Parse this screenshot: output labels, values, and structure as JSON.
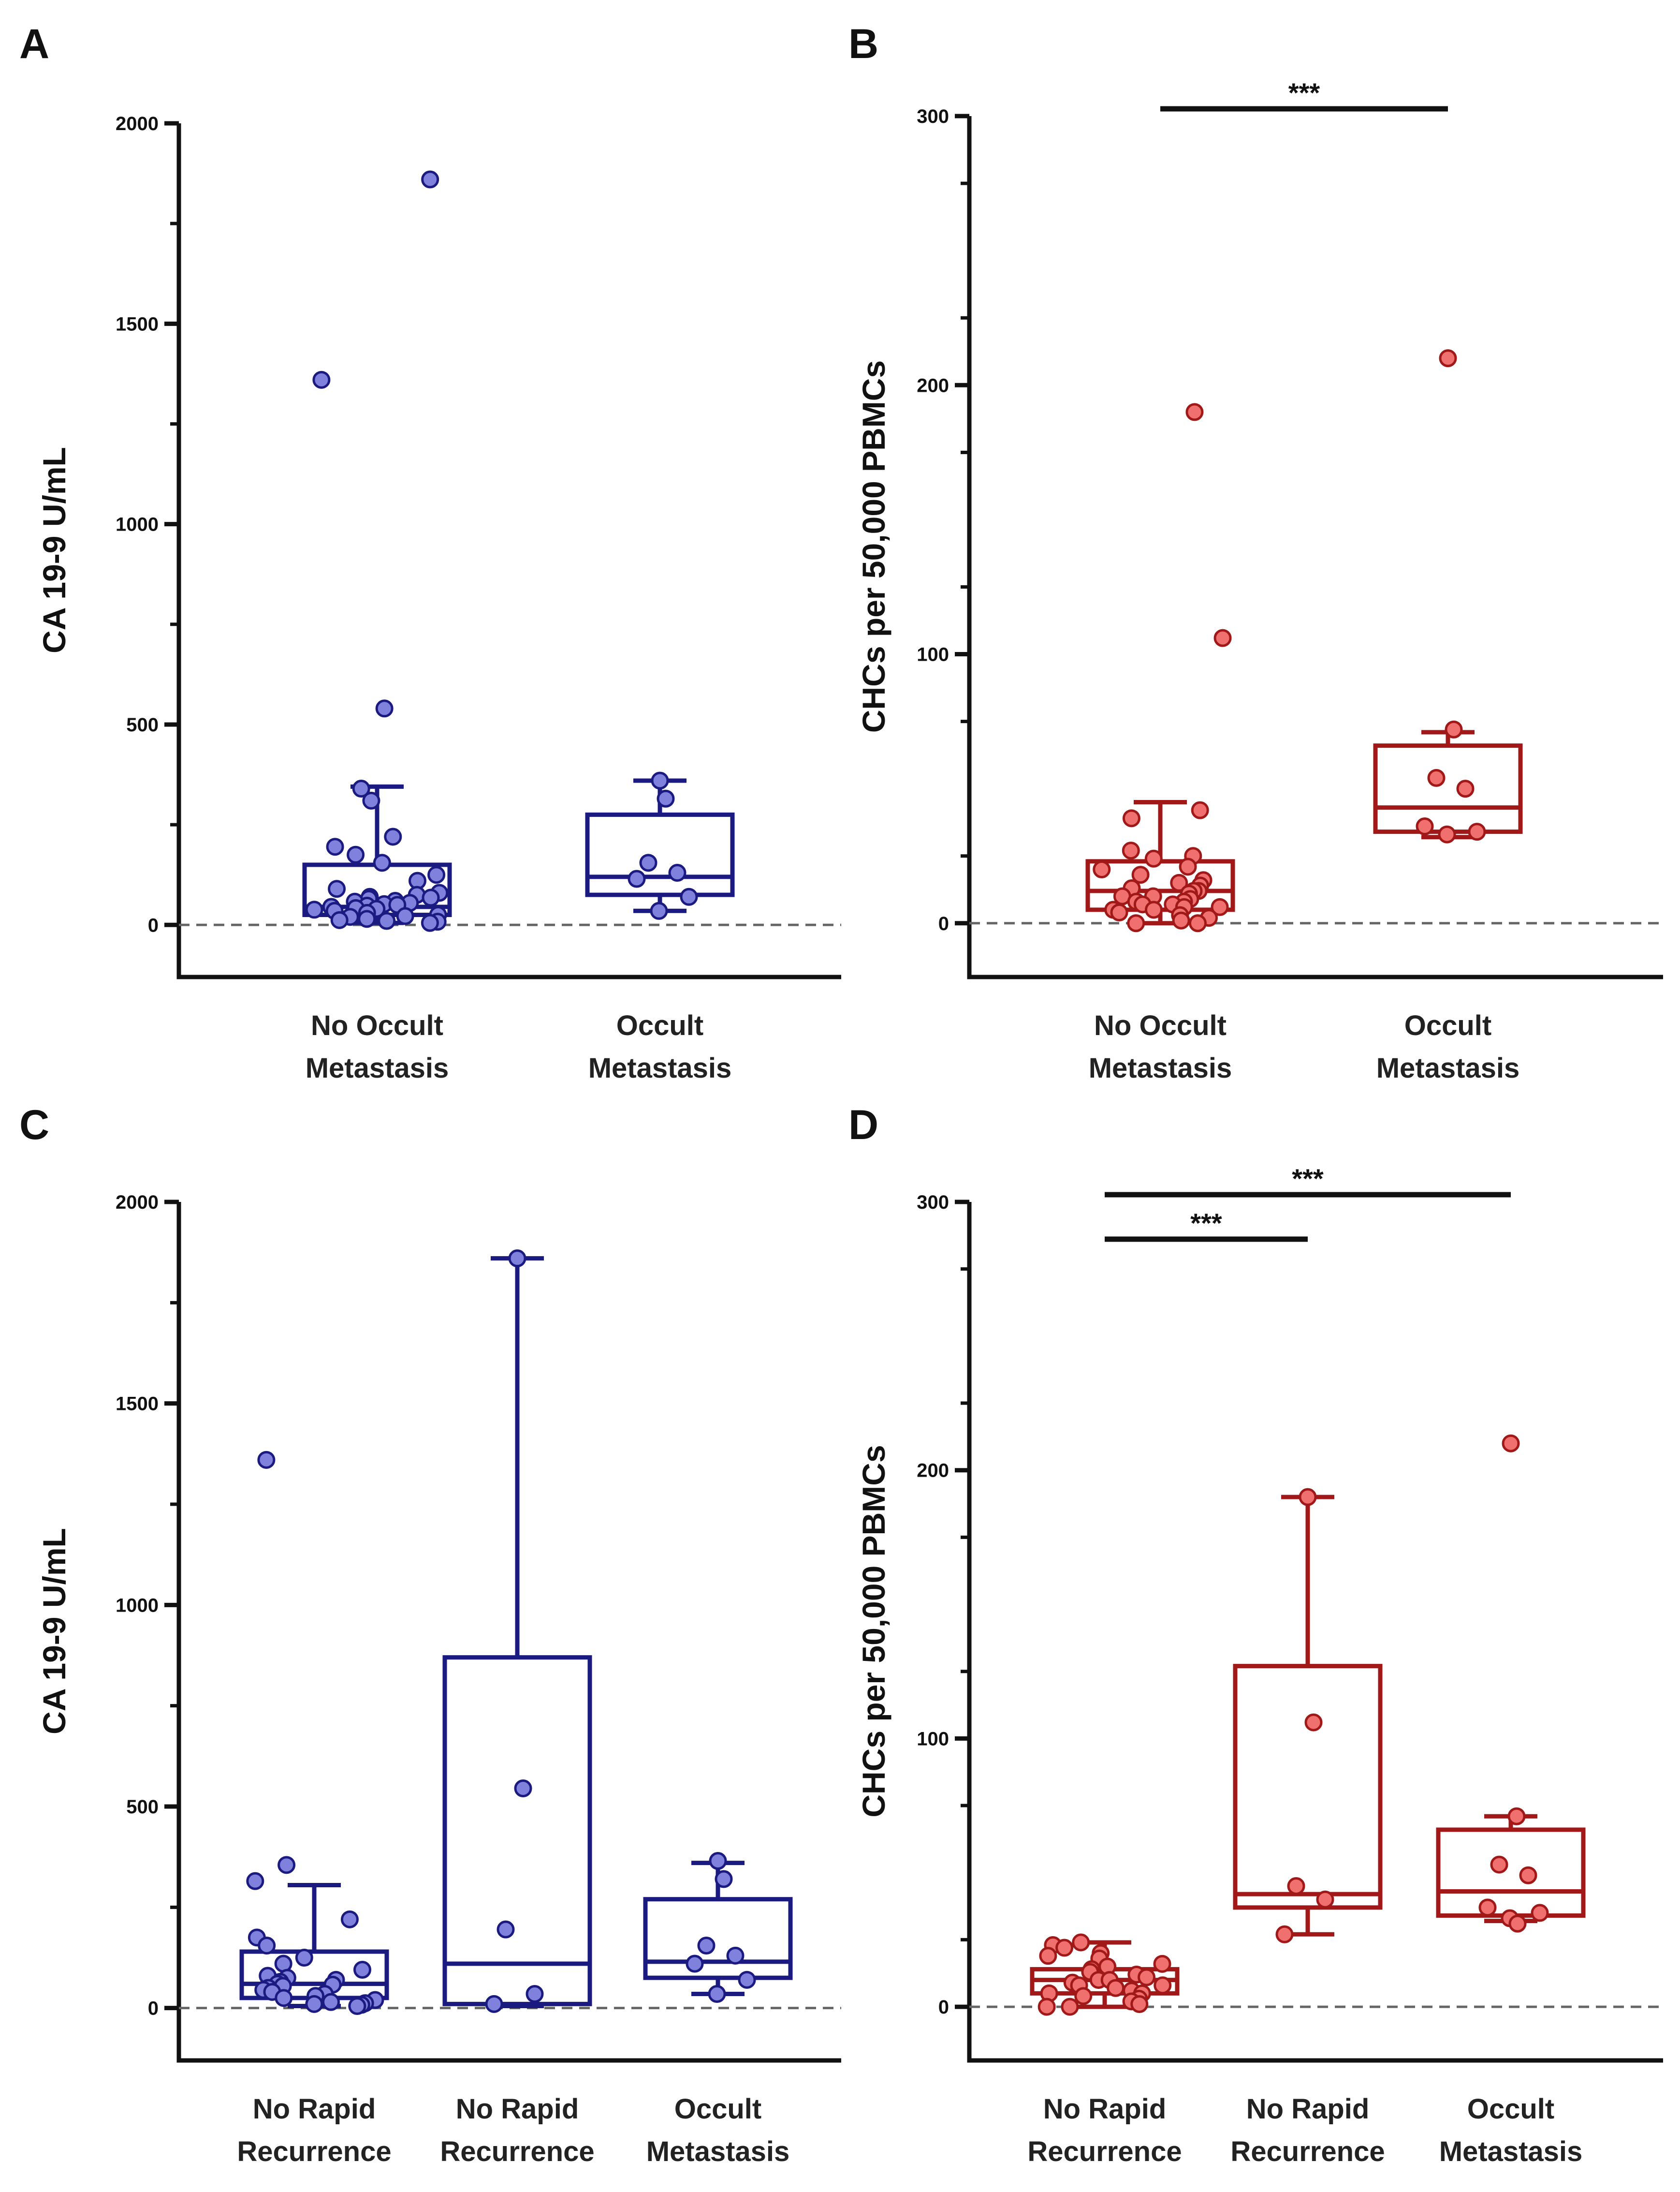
{
  "chart_data": [
    {
      "id": "A",
      "panel_label": "A",
      "type": "box-scatter",
      "ylabel": "CA 19-9 U/mL",
      "ylim": [
        -130,
        2000
      ],
      "yticks": [
        "0",
        "500",
        "1000",
        "1500",
        "2000"
      ],
      "ytick_values": [
        0,
        500,
        1000,
        1500,
        2000
      ],
      "ymin_tick": 250,
      "color": "#1a1a80",
      "fill": "#8080dd",
      "categories": [
        [
          "No Occult",
          "Metastasis"
        ],
        [
          "Occult",
          "Metastasis"
        ]
      ],
      "boxes": [
        {
          "q1": 25,
          "median": 45,
          "q3": 150,
          "low": 5,
          "high": 345
        },
        {
          "q1": 75,
          "median": 120,
          "q3": 275,
          "low": 35,
          "high": 360
        }
      ],
      "points": [
        [
          1860,
          1360,
          540,
          340,
          310,
          220,
          195,
          175,
          155,
          125,
          110,
          90,
          80,
          75,
          70,
          68,
          65,
          60,
          58,
          55,
          52,
          50,
          48,
          45,
          42,
          40,
          38,
          35,
          30,
          25,
          22,
          20,
          15,
          12,
          10,
          8,
          5
        ],
        [
          360,
          315,
          155,
          130,
          115,
          70,
          35
        ]
      ],
      "significance": []
    },
    {
      "id": "B",
      "panel_label": "B",
      "type": "box-scatter",
      "ylabel": "CHCs per 50,000 PBMCs",
      "ylim": [
        -20,
        300
      ],
      "yticks": [
        "0",
        "100",
        "200",
        "300"
      ],
      "ytick_values": [
        0,
        100,
        200,
        300
      ],
      "ymin_tick": 25,
      "color": "#a01818",
      "fill": "#f07070",
      "categories": [
        [
          "No Occult",
          "Metastasis"
        ],
        [
          "Occult",
          "Metastasis"
        ]
      ],
      "boxes": [
        {
          "q1": 5,
          "median": 12,
          "q3": 23,
          "low": 0,
          "high": 45
        },
        {
          "q1": 34,
          "median": 43,
          "q3": 66,
          "low": 32,
          "high": 71
        }
      ],
      "points": [
        [
          190,
          106,
          42,
          39,
          27,
          25,
          24,
          21,
          20,
          18,
          16,
          15,
          14,
          13,
          12,
          12,
          11,
          10,
          10,
          9,
          8,
          8,
          7,
          7,
          6,
          6,
          5,
          5,
          4,
          3,
          2,
          1,
          0,
          0
        ],
        [
          210,
          72,
          54,
          50,
          36,
          34,
          33
        ]
      ],
      "significance": [
        {
          "from": 0,
          "to": 1,
          "label": "***",
          "level": 0
        }
      ]
    },
    {
      "id": "C",
      "panel_label": "C",
      "type": "box-scatter",
      "ylabel": "CA 19-9 U/mL",
      "ylim": [
        -130,
        2000
      ],
      "yticks": [
        "0",
        "500",
        "1000",
        "1500",
        "2000"
      ],
      "ytick_values": [
        0,
        500,
        1000,
        1500,
        2000
      ],
      "ymin_tick": 250,
      "color": "#1a1a80",
      "fill": "#8080dd",
      "categories": [
        [
          "No Rapid",
          "Recurrence"
        ],
        [
          "No Rapid",
          "Recurrence"
        ],
        [
          "Occult",
          "Metastasis"
        ]
      ],
      "boxes": [
        {
          "q1": 25,
          "median": 60,
          "q3": 140,
          "low": 5,
          "high": 305
        },
        {
          "q1": 10,
          "median": 110,
          "q3": 870,
          "low": 5,
          "high": 1860
        },
        {
          "q1": 75,
          "median": 115,
          "q3": 270,
          "low": 35,
          "high": 360
        }
      ],
      "points": [
        [
          1360,
          355,
          315,
          220,
          175,
          155,
          125,
          110,
          95,
          80,
          75,
          70,
          65,
          60,
          58,
          55,
          50,
          45,
          40,
          35,
          30,
          25,
          20,
          15,
          12,
          10,
          8,
          5
        ],
        [
          1860,
          545,
          195,
          35,
          10
        ],
        [
          365,
          320,
          155,
          130,
          110,
          70,
          35
        ]
      ],
      "significance": []
    },
    {
      "id": "D",
      "panel_label": "D",
      "type": "box-scatter",
      "ylabel": "CHCs per 50,000 PBMCs",
      "ylim": [
        -20,
        300
      ],
      "yticks": [
        "0",
        "100",
        "200",
        "300"
      ],
      "ytick_values": [
        0,
        100,
        200,
        300
      ],
      "ymin_tick": 25,
      "color": "#a01818",
      "fill": "#f07070",
      "categories": [
        [
          "No Rapid",
          "Recurrence"
        ],
        [
          "No Rapid",
          "Recurrence"
        ],
        [
          "Occult",
          "Metastasis"
        ]
      ],
      "boxes": [
        {
          "q1": 5,
          "median": 10,
          "q3": 14,
          "low": 0,
          "high": 24
        },
        {
          "q1": 37,
          "median": 42,
          "q3": 127,
          "low": 27,
          "high": 190
        },
        {
          "q1": 34,
          "median": 43,
          "q3": 66,
          "low": 32,
          "high": 71
        }
      ],
      "points": [
        [
          24,
          23,
          22,
          20,
          19,
          18,
          16,
          15,
          14,
          13,
          12,
          11,
          10,
          10,
          9,
          8,
          8,
          7,
          6,
          5,
          5,
          4,
          3,
          2,
          1,
          0,
          0
        ],
        [
          190,
          106,
          45,
          40,
          27
        ],
        [
          210,
          71,
          53,
          49,
          37,
          35,
          33,
          31
        ]
      ],
      "significance": [
        {
          "from": 0,
          "to": 2,
          "label": "***",
          "level": 0
        },
        {
          "from": 0,
          "to": 1,
          "label": "***",
          "level": 1
        }
      ]
    }
  ]
}
